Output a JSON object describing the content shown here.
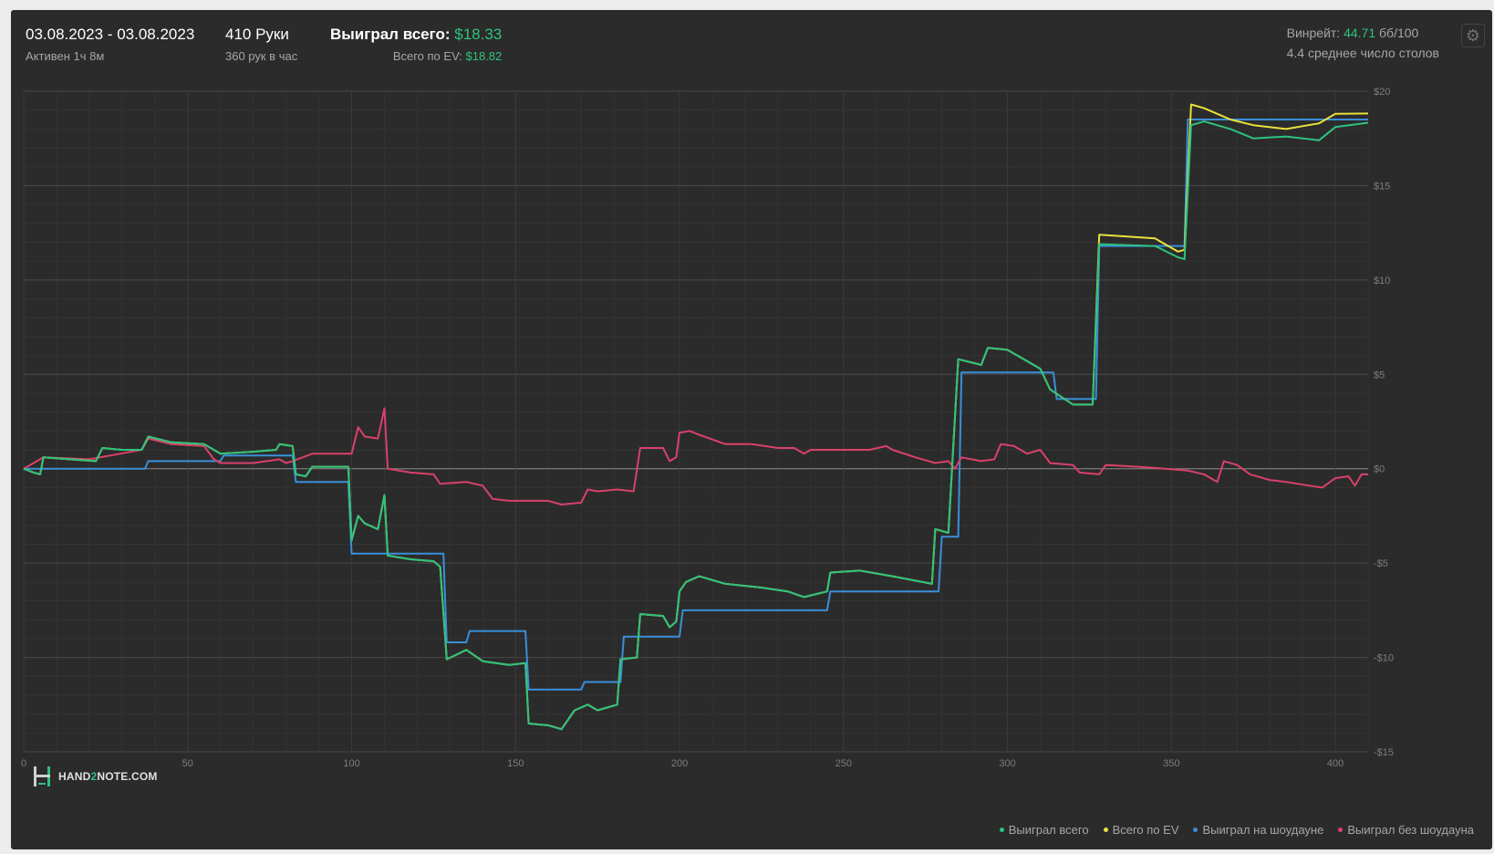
{
  "header": {
    "date_range": "03.08.2023 - 03.08.2023",
    "active": "Активен 1ч 8м",
    "hands": "410 Руки",
    "hands_per_hour": "360 рук в час",
    "won_label": "Выиграл всего:",
    "won_value": "$18.33",
    "ev_label": "Всего по EV:",
    "ev_value": "$18.82",
    "winrate_label": "Винрейт:",
    "winrate_value": "44.71",
    "winrate_unit": "бб/100",
    "avg_tables": "4.4 среднее число столов"
  },
  "logo": {
    "prefix": "HAND",
    "two": "2",
    "suffix": "NOTE.COM"
  },
  "colors": {
    "won": "#2ec27e",
    "ev": "#e8e23c",
    "showdown": "#3a8fd9",
    "nonshowdown": "#d9416a",
    "accent": "#2ec27e"
  },
  "chart_data": {
    "type": "line",
    "xlim": [
      0,
      410
    ],
    "ylim": [
      -15,
      20
    ],
    "grid": true,
    "legend_position": "bottom-right",
    "x_ticks": [
      0,
      50,
      100,
      150,
      200,
      250,
      300,
      350,
      400
    ],
    "x_tick_labels": [
      "0",
      "50",
      "100",
      "150",
      "200",
      "250",
      "300",
      "350",
      "400"
    ],
    "y_ticks": [
      20,
      15,
      10,
      5,
      0,
      -5,
      -10,
      -15
    ],
    "y_tick_labels": [
      "$20",
      "$15",
      "$10",
      "$5",
      "$0",
      "-$5",
      "-$10",
      "-$15"
    ],
    "series": [
      {
        "name": "Выиграл всего",
        "color": "#2ec27e",
        "points": [
          [
            0,
            0
          ],
          [
            3,
            -0.2
          ],
          [
            5,
            -0.3
          ],
          [
            6,
            0.6
          ],
          [
            14,
            0.5
          ],
          [
            22,
            0.4
          ],
          [
            24,
            1.1
          ],
          [
            30,
            1.0
          ],
          [
            36,
            1.0
          ],
          [
            38,
            1.7
          ],
          [
            45,
            1.4
          ],
          [
            55,
            1.3
          ],
          [
            60,
            0.8
          ],
          [
            70,
            0.9
          ],
          [
            77,
            1.0
          ],
          [
            78,
            1.3
          ],
          [
            82,
            1.2
          ],
          [
            83,
            -0.3
          ],
          [
            86,
            -0.4
          ],
          [
            88,
            0.1
          ],
          [
            99,
            0.1
          ],
          [
            100,
            -3.8
          ],
          [
            102,
            -2.5
          ],
          [
            104,
            -2.9
          ],
          [
            108,
            -3.2
          ],
          [
            110,
            -1.4
          ],
          [
            111,
            -4.6
          ],
          [
            118,
            -4.8
          ],
          [
            125,
            -4.9
          ],
          [
            127,
            -5.2
          ],
          [
            129,
            -10.1
          ],
          [
            135,
            -9.6
          ],
          [
            140,
            -10.2
          ],
          [
            148,
            -10.4
          ],
          [
            153,
            -10.3
          ],
          [
            154,
            -13.5
          ],
          [
            160,
            -13.6
          ],
          [
            164,
            -13.8
          ],
          [
            168,
            -12.8
          ],
          [
            172,
            -12.5
          ],
          [
            175,
            -12.8
          ],
          [
            181,
            -12.5
          ],
          [
            182,
            -10.1
          ],
          [
            187,
            -10.0
          ],
          [
            188,
            -7.7
          ],
          [
            195,
            -7.8
          ],
          [
            197,
            -8.4
          ],
          [
            199,
            -8.1
          ],
          [
            200,
            -6.5
          ],
          [
            202,
            -6.0
          ],
          [
            206,
            -5.7
          ],
          [
            214,
            -6.1
          ],
          [
            225,
            -6.3
          ],
          [
            233,
            -6.5
          ],
          [
            238,
            -6.8
          ],
          [
            245,
            -6.5
          ],
          [
            246,
            -5.5
          ],
          [
            255,
            -5.4
          ],
          [
            265,
            -5.7
          ],
          [
            277,
            -6.1
          ],
          [
            278,
            -3.2
          ],
          [
            282,
            -3.4
          ],
          [
            285,
            5.8
          ],
          [
            292,
            5.5
          ],
          [
            294,
            6.4
          ],
          [
            300,
            6.3
          ],
          [
            310,
            5.3
          ],
          [
            313,
            4.2
          ],
          [
            320,
            3.4
          ],
          [
            326,
            3.4
          ],
          [
            328,
            11.9
          ],
          [
            345,
            11.8
          ],
          [
            352,
            11.2
          ],
          [
            354,
            11.1
          ],
          [
            356,
            18.2
          ],
          [
            360,
            18.4
          ],
          [
            368,
            18.0
          ],
          [
            375,
            17.5
          ],
          [
            385,
            17.6
          ],
          [
            395,
            17.4
          ],
          [
            400,
            18.1
          ],
          [
            410,
            18.33
          ]
        ]
      },
      {
        "name": "Всего по EV",
        "color": "#e8e23c",
        "points": [
          [
            0,
            0
          ],
          [
            3,
            -0.2
          ],
          [
            5,
            -0.3
          ],
          [
            6,
            0.6
          ],
          [
            14,
            0.5
          ],
          [
            22,
            0.4
          ],
          [
            24,
            1.1
          ],
          [
            30,
            1.0
          ],
          [
            36,
            1.0
          ],
          [
            38,
            1.7
          ],
          [
            45,
            1.4
          ],
          [
            55,
            1.3
          ],
          [
            60,
            0.8
          ],
          [
            70,
            0.9
          ],
          [
            77,
            1.0
          ],
          [
            78,
            1.3
          ],
          [
            82,
            1.2
          ],
          [
            83,
            -0.3
          ],
          [
            86,
            -0.4
          ],
          [
            88,
            0.1
          ],
          [
            99,
            0.1
          ],
          [
            100,
            -3.8
          ],
          [
            102,
            -2.5
          ],
          [
            104,
            -2.9
          ],
          [
            108,
            -3.2
          ],
          [
            110,
            -1.4
          ],
          [
            111,
            -4.6
          ],
          [
            118,
            -4.8
          ],
          [
            125,
            -4.9
          ],
          [
            127,
            -5.2
          ],
          [
            129,
            -10.1
          ],
          [
            135,
            -9.6
          ],
          [
            140,
            -10.2
          ],
          [
            148,
            -10.4
          ],
          [
            153,
            -10.3
          ],
          [
            154,
            -13.5
          ],
          [
            160,
            -13.6
          ],
          [
            164,
            -13.8
          ],
          [
            168,
            -12.8
          ],
          [
            172,
            -12.5
          ],
          [
            175,
            -12.8
          ],
          [
            181,
            -12.5
          ],
          [
            182,
            -10.1
          ],
          [
            187,
            -10.0
          ],
          [
            188,
            -7.7
          ],
          [
            195,
            -7.8
          ],
          [
            197,
            -8.4
          ],
          [
            199,
            -8.1
          ],
          [
            200,
            -6.5
          ],
          [
            202,
            -6.0
          ],
          [
            206,
            -5.7
          ],
          [
            214,
            -6.1
          ],
          [
            225,
            -6.3
          ],
          [
            233,
            -6.5
          ],
          [
            238,
            -6.8
          ],
          [
            245,
            -6.5
          ],
          [
            246,
            -5.5
          ],
          [
            255,
            -5.4
          ],
          [
            265,
            -5.7
          ],
          [
            277,
            -6.1
          ],
          [
            278,
            -3.2
          ],
          [
            282,
            -3.4
          ],
          [
            285,
            5.8
          ],
          [
            292,
            5.5
          ],
          [
            294,
            6.4
          ],
          [
            300,
            6.3
          ],
          [
            310,
            5.3
          ],
          [
            313,
            4.2
          ],
          [
            320,
            3.4
          ],
          [
            326,
            3.4
          ],
          [
            328,
            12.4
          ],
          [
            345,
            12.2
          ],
          [
            352,
            11.5
          ],
          [
            354,
            11.6
          ],
          [
            356,
            19.3
          ],
          [
            360,
            19.1
          ],
          [
            368,
            18.5
          ],
          [
            375,
            18.2
          ],
          [
            385,
            18.0
          ],
          [
            395,
            18.3
          ],
          [
            400,
            18.8
          ],
          [
            410,
            18.82
          ]
        ]
      },
      {
        "name": "Выиграл на шоудауне",
        "color": "#3a8fd9",
        "points": [
          [
            0,
            0
          ],
          [
            37,
            0
          ],
          [
            38,
            0.4
          ],
          [
            60,
            0.4
          ],
          [
            61,
            0.7
          ],
          [
            82,
            0.7
          ],
          [
            83,
            -0.7
          ],
          [
            99,
            -0.7
          ],
          [
            100,
            -4.5
          ],
          [
            128,
            -4.5
          ],
          [
            129,
            -9.2
          ],
          [
            135,
            -9.2
          ],
          [
            136,
            -8.6
          ],
          [
            153,
            -8.6
          ],
          [
            154,
            -11.7
          ],
          [
            170,
            -11.7
          ],
          [
            171,
            -11.3
          ],
          [
            182,
            -11.3
          ],
          [
            183,
            -8.9
          ],
          [
            200,
            -8.9
          ],
          [
            201,
            -7.5
          ],
          [
            245,
            -7.5
          ],
          [
            246,
            -6.5
          ],
          [
            279,
            -6.5
          ],
          [
            280,
            -3.6
          ],
          [
            285,
            -3.6
          ],
          [
            286,
            5.1
          ],
          [
            314,
            5.1
          ],
          [
            315,
            3.7
          ],
          [
            327,
            3.7
          ],
          [
            328,
            11.8
          ],
          [
            353,
            11.8
          ],
          [
            354,
            11.8
          ],
          [
            355,
            18.5
          ],
          [
            410,
            18.5
          ]
        ]
      },
      {
        "name": "Выиграл без шоудауна",
        "color": "#d9416a",
        "points": [
          [
            0,
            0
          ],
          [
            6,
            0.6
          ],
          [
            20,
            0.5
          ],
          [
            36,
            1.0
          ],
          [
            38,
            1.6
          ],
          [
            45,
            1.3
          ],
          [
            55,
            1.2
          ],
          [
            58,
            0.5
          ],
          [
            60,
            0.3
          ],
          [
            70,
            0.3
          ],
          [
            78,
            0.5
          ],
          [
            80,
            0.3
          ],
          [
            82,
            0.4
          ],
          [
            88,
            0.8
          ],
          [
            99,
            0.8
          ],
          [
            100,
            0.8
          ],
          [
            102,
            2.2
          ],
          [
            104,
            1.7
          ],
          [
            108,
            1.6
          ],
          [
            110,
            3.2
          ],
          [
            111,
            0
          ],
          [
            118,
            -0.2
          ],
          [
            125,
            -0.3
          ],
          [
            127,
            -0.8
          ],
          [
            135,
            -0.7
          ],
          [
            140,
            -0.9
          ],
          [
            143,
            -1.6
          ],
          [
            148,
            -1.7
          ],
          [
            160,
            -1.7
          ],
          [
            164,
            -1.9
          ],
          [
            170,
            -1.8
          ],
          [
            172,
            -1.1
          ],
          [
            175,
            -1.2
          ],
          [
            181,
            -1.1
          ],
          [
            186,
            -1.2
          ],
          [
            188,
            1.1
          ],
          [
            195,
            1.1
          ],
          [
            197,
            0.4
          ],
          [
            199,
            0.6
          ],
          [
            200,
            1.9
          ],
          [
            203,
            2.0
          ],
          [
            206,
            1.8
          ],
          [
            214,
            1.3
          ],
          [
            222,
            1.3
          ],
          [
            230,
            1.1
          ],
          [
            235,
            1.1
          ],
          [
            238,
            0.8
          ],
          [
            240,
            1.0
          ],
          [
            250,
            1.0
          ],
          [
            258,
            1.0
          ],
          [
            263,
            1.2
          ],
          [
            265,
            1.0
          ],
          [
            272,
            0.6
          ],
          [
            278,
            0.3
          ],
          [
            282,
            0.4
          ],
          [
            284,
            0
          ],
          [
            286,
            0.6
          ],
          [
            292,
            0.4
          ],
          [
            296,
            0.5
          ],
          [
            298,
            1.3
          ],
          [
            302,
            1.2
          ],
          [
            306,
            0.8
          ],
          [
            310,
            1.0
          ],
          [
            313,
            0.3
          ],
          [
            320,
            0.2
          ],
          [
            322,
            -0.2
          ],
          [
            328,
            -0.3
          ],
          [
            330,
            0.2
          ],
          [
            340,
            0.1
          ],
          [
            348,
            0
          ],
          [
            355,
            -0.1
          ],
          [
            360,
            -0.3
          ],
          [
            364,
            -0.7
          ],
          [
            366,
            0.4
          ],
          [
            370,
            0.2
          ],
          [
            374,
            -0.3
          ],
          [
            380,
            -0.6
          ],
          [
            385,
            -0.7
          ],
          [
            392,
            -0.9
          ],
          [
            396,
            -1.0
          ],
          [
            400,
            -0.5
          ],
          [
            404,
            -0.4
          ],
          [
            406,
            -0.9
          ],
          [
            408,
            -0.3
          ],
          [
            410,
            -0.3
          ]
        ]
      }
    ]
  }
}
